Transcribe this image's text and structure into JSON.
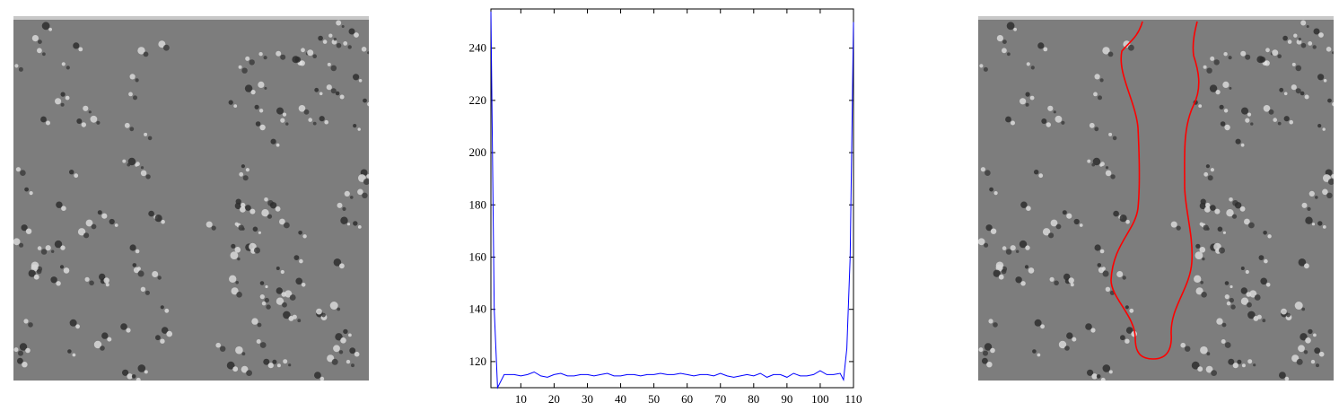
{
  "chart_data": {
    "type": "line",
    "title": "",
    "xlabel": "",
    "ylabel": "",
    "xlim": [
      1,
      110
    ],
    "ylim": [
      110,
      255
    ],
    "x_ticks": [
      10,
      20,
      30,
      40,
      50,
      60,
      70,
      80,
      90,
      100,
      110
    ],
    "y_ticks": [
      120,
      140,
      160,
      180,
      200,
      220,
      240
    ],
    "series": [
      {
        "color": "#0000ff",
        "x": [
          1,
          2,
          3,
          5,
          8,
          10,
          12,
          14,
          16,
          18,
          20,
          22,
          24,
          26,
          28,
          30,
          32,
          34,
          36,
          38,
          40,
          42,
          44,
          46,
          48,
          50,
          52,
          54,
          56,
          58,
          60,
          62,
          64,
          66,
          68,
          70,
          72,
          74,
          76,
          78,
          80,
          82,
          84,
          86,
          88,
          90,
          92,
          94,
          96,
          98,
          100,
          102,
          104,
          106,
          107,
          108,
          109,
          110
        ],
        "y": [
          254,
          140,
          110,
          115,
          115,
          114.5,
          115,
          116,
          114.5,
          114,
          115,
          115.5,
          114.5,
          114.5,
          115,
          115,
          114.5,
          115,
          115.5,
          114.5,
          114.5,
          115,
          115,
          114.5,
          115,
          115,
          115.5,
          115,
          115,
          115.5,
          115,
          114.5,
          115,
          115,
          114.5,
          115.5,
          114.5,
          114,
          114.5,
          115,
          114.5,
          115.5,
          114,
          115,
          115,
          114,
          115.5,
          114.5,
          114.5,
          115,
          116.5,
          115,
          115,
          115.5,
          113,
          125,
          160,
          250
        ]
      }
    ]
  },
  "images": {
    "left": {
      "name": "grayscale-speckle-image"
    },
    "right": {
      "name": "speckle-image-with-red-contour",
      "contour_color": "#ff0000"
    }
  }
}
